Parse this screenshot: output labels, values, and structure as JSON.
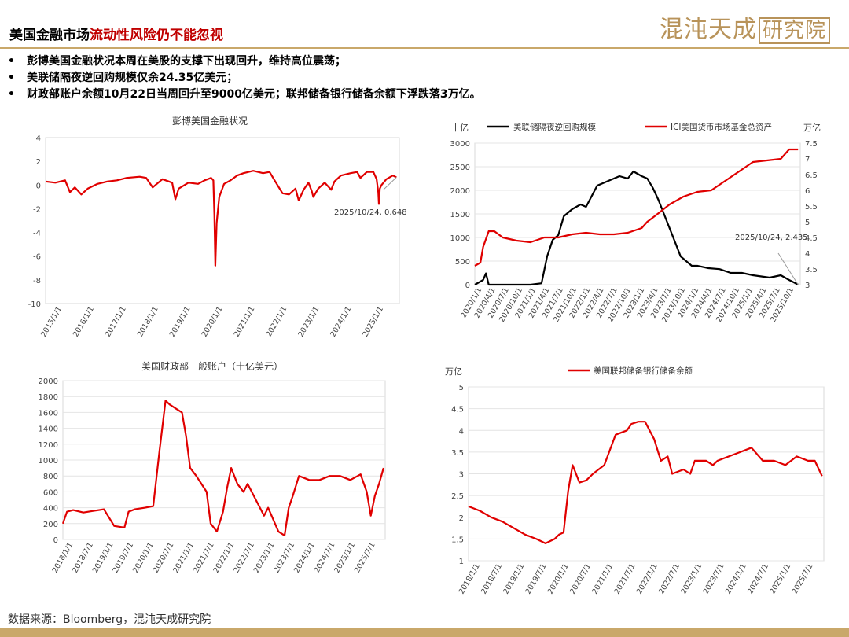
{
  "header": {
    "title_part1": "美国金融市场",
    "title_part2": "流动性风险仍不能忽视",
    "logo_text": "混沌天成",
    "logo_box_text": "研究院"
  },
  "bullets": [
    "彭博美国金融状况本周在美股的支撑下出现回升，维持高位震荡；",
    "美联储隔夜逆回购规模仅余24.35亿美元；",
    "财政部账户余额10月22日当周回升至9000亿美元；联邦储备银行储备余额下浮跌落3万亿。"
  ],
  "bullet_symbol": "•",
  "footer": {
    "source": "数据来源：Bloomberg，混沌天成研究院"
  },
  "colors": {
    "red": "#e00000",
    "black": "#000000",
    "gold": "#c9a86a",
    "highlight": "#c00000"
  },
  "chart_data": [
    {
      "type": "line",
      "title": "彭博美国金融状况",
      "ylim": [
        -10,
        4
      ],
      "yticks": [
        "4",
        "2",
        "0",
        "-2",
        "-4",
        "-6",
        "-8",
        "-10"
      ],
      "xticks": [
        "2015/1/1",
        "2016/1/1",
        "2017/1/1",
        "2018/1/1",
        "2019/1/1",
        "2020/1/1",
        "2021/1/1",
        "2022/1/1",
        "2023/1/1",
        "2024/1/1",
        "2025/1/1"
      ],
      "x_range": [
        2015.0,
        2025.9
      ],
      "annotation": "2025/10/24, 0.648",
      "grid": false,
      "series": [
        {
          "color": "#e00000",
          "x": [
            2015.0,
            2015.3,
            2015.6,
            2015.75,
            2015.9,
            2016.1,
            2016.3,
            2016.6,
            2016.9,
            2017.2,
            2017.5,
            2017.9,
            2018.1,
            2018.3,
            2018.6,
            2018.9,
            2019.0,
            2019.1,
            2019.4,
            2019.7,
            2019.9,
            2020.1,
            2020.17,
            2020.2,
            2020.23,
            2020.27,
            2020.35,
            2020.5,
            2020.7,
            2020.9,
            2021.1,
            2021.4,
            2021.7,
            2021.9,
            2022.1,
            2022.3,
            2022.5,
            2022.7,
            2022.8,
            2022.95,
            2023.1,
            2023.2,
            2023.25,
            2023.4,
            2023.6,
            2023.8,
            2023.9,
            2024.1,
            2024.4,
            2024.6,
            2024.7,
            2024.9,
            2025.1,
            2025.2,
            2025.25,
            2025.27,
            2025.3,
            2025.35,
            2025.5,
            2025.7,
            2025.81
          ],
          "y": [
            0.3,
            0.2,
            0.4,
            -0.6,
            -0.2,
            -0.8,
            -0.3,
            0.1,
            0.3,
            0.4,
            0.6,
            0.7,
            0.6,
            -0.2,
            0.5,
            0.2,
            -1.2,
            -0.3,
            0.2,
            0.1,
            0.4,
            0.6,
            0.4,
            -2.5,
            -6.8,
            -3.2,
            -1.0,
            0.1,
            0.4,
            0.8,
            1.0,
            1.2,
            1.0,
            1.1,
            0.2,
            -0.7,
            -0.8,
            -0.3,
            -1.3,
            -0.4,
            0.2,
            -0.5,
            -1.0,
            -0.3,
            0.2,
            -0.4,
            0.3,
            0.8,
            1.0,
            1.1,
            0.6,
            1.1,
            1.1,
            0.5,
            -0.6,
            -1.6,
            -0.3,
            0.0,
            0.5,
            0.8,
            0.648
          ]
        }
      ]
    },
    {
      "type": "line",
      "ylabel_left": "十亿",
      "ylabel_right": "万亿",
      "ylim_left": [
        0,
        3000
      ],
      "ylim_right": [
        3,
        7.5
      ],
      "yticks_left": [
        "3000",
        "2500",
        "2000",
        "1500",
        "1000",
        "500",
        "0"
      ],
      "yticks_right": [
        "7.5",
        "7",
        "6.5",
        "6",
        "5.5",
        "5",
        "4.5",
        "4",
        "3.5",
        "3"
      ],
      "xticks": [
        "2020/1/1",
        "2020/4/1",
        "2020/7/1",
        "2020/10/1",
        "2021/1/1",
        "2021/4/1",
        "2021/7/1",
        "2021/10/1",
        "2022/1/1",
        "2022/4/1",
        "2022/7/1",
        "2022/10/1",
        "2023/1/1",
        "2023/4/1",
        "2023/7/1",
        "2023/10/1",
        "2024/1/1",
        "2024/4/1",
        "2024/7/1",
        "2024/10/1",
        "2025/1/1",
        "2025/4/1",
        "2025/7/1",
        "2025/10/1"
      ],
      "x_range": [
        2020.0,
        2025.85
      ],
      "annotation": "2025/10/24, 2.435",
      "legend_position": "top",
      "grid": true,
      "series": [
        {
          "name": "美联储隔夜逆回购规模",
          "axis": "left",
          "color": "#000000",
          "x": [
            2020.0,
            2020.15,
            2020.2,
            2020.25,
            2020.35,
            2021.0,
            2021.2,
            2021.3,
            2021.4,
            2021.5,
            2021.6,
            2021.75,
            2021.9,
            2022.0,
            2022.2,
            2022.4,
            2022.6,
            2022.75,
            2022.85,
            2023.0,
            2023.1,
            2023.2,
            2023.3,
            2023.4,
            2023.6,
            2023.7,
            2023.8,
            2023.9,
            2024.0,
            2024.2,
            2024.4,
            2024.6,
            2024.8,
            2025.0,
            2025.3,
            2025.5,
            2025.65,
            2025.75,
            2025.81
          ],
          "y": [
            0,
            100,
            240,
            0,
            0,
            0,
            30,
            600,
            950,
            1050,
            1450,
            1600,
            1700,
            1650,
            2100,
            2200,
            2300,
            2250,
            2400,
            2300,
            2250,
            2050,
            1800,
            1500,
            900,
            600,
            500,
            400,
            400,
            350,
            330,
            250,
            250,
            200,
            150,
            200,
            100,
            40,
            2.435
          ]
        },
        {
          "name": "ICI美国货币市场基金总资产",
          "axis": "right",
          "color": "#e00000",
          "x": [
            2020.0,
            2020.1,
            2020.15,
            2020.25,
            2020.35,
            2020.5,
            2020.75,
            2021.0,
            2021.25,
            2021.5,
            2021.75,
            2022.0,
            2022.25,
            2022.5,
            2022.75,
            2023.0,
            2023.1,
            2023.25,
            2023.5,
            2023.75,
            2024.0,
            2024.25,
            2024.5,
            2024.75,
            2025.0,
            2025.25,
            2025.5,
            2025.65,
            2025.81
          ],
          "y": [
            3.6,
            3.7,
            4.2,
            4.7,
            4.7,
            4.5,
            4.4,
            4.35,
            4.5,
            4.5,
            4.6,
            4.65,
            4.6,
            4.6,
            4.65,
            4.8,
            5.0,
            5.2,
            5.55,
            5.8,
            5.95,
            6.0,
            6.3,
            6.6,
            6.9,
            6.95,
            7.0,
            7.3,
            7.3
          ]
        }
      ]
    },
    {
      "type": "line",
      "title": "美国财政部一般账户（十亿美元）",
      "ylim": [
        0,
        2000
      ],
      "yticks": [
        "2000",
        "1800",
        "1600",
        "1400",
        "1200",
        "1000",
        "800",
        "600",
        "400",
        "200",
        "0"
      ],
      "xticks": [
        "2018/1/1",
        "2018/7/1",
        "2019/1/1",
        "2019/7/1",
        "2020/1/1",
        "2020/7/1",
        "2021/1/1",
        "2021/7/1",
        "2022/1/1",
        "2022/7/1",
        "2023/1/1",
        "2023/7/1",
        "2024/1/1",
        "2024/7/1",
        "2025/1/1",
        "2025/7/1"
      ],
      "x_range": [
        2018.0,
        2025.85
      ],
      "grid": true,
      "series": [
        {
          "color": "#e00000",
          "x": [
            2018.0,
            2018.1,
            2018.25,
            2018.5,
            2018.75,
            2019.0,
            2019.25,
            2019.5,
            2019.6,
            2019.75,
            2020.0,
            2020.2,
            2020.35,
            2020.5,
            2020.6,
            2020.75,
            2020.9,
            2021.0,
            2021.1,
            2021.25,
            2021.5,
            2021.6,
            2021.75,
            2021.9,
            2022.0,
            2022.1,
            2022.25,
            2022.4,
            2022.5,
            2022.75,
            2022.9,
            2023.0,
            2023.25,
            2023.4,
            2023.5,
            2023.6,
            2023.75,
            2024.0,
            2024.25,
            2024.5,
            2024.75,
            2025.0,
            2025.25,
            2025.4,
            2025.5,
            2025.6,
            2025.7,
            2025.81
          ],
          "y": [
            200,
            350,
            370,
            340,
            360,
            380,
            170,
            150,
            350,
            380,
            400,
            420,
            1100,
            1750,
            1700,
            1650,
            1600,
            1300,
            900,
            800,
            600,
            200,
            100,
            350,
            650,
            900,
            700,
            600,
            700,
            450,
            300,
            400,
            100,
            50,
            400,
            550,
            800,
            750,
            750,
            800,
            800,
            750,
            820,
            600,
            300,
            550,
            700,
            900
          ]
        }
      ]
    },
    {
      "type": "line",
      "ylabel_left": "万亿",
      "ylim": [
        1,
        5
      ],
      "yticks": [
        "5",
        "4.5",
        "4",
        "3.5",
        "3",
        "2.5",
        "2",
        "1.5",
        "1"
      ],
      "xticks": [
        "2018/1/1",
        "2018/7/1",
        "2019/1/1",
        "2019/7/1",
        "2020/1/1",
        "2020/7/1",
        "2021/1/1",
        "2021/7/1",
        "2022/1/1",
        "2022/7/1",
        "2023/1/1",
        "2023/7/1",
        "2024/1/1",
        "2024/7/1",
        "2025/1/1",
        "2025/7/1"
      ],
      "x_range": [
        2018.0,
        2025.85
      ],
      "legend_position": "top",
      "grid": true,
      "series": [
        {
          "name": "美国联邦储备银行储备余额",
          "color": "#e00000",
          "x": [
            2018.0,
            2018.25,
            2018.5,
            2018.75,
            2019.0,
            2019.25,
            2019.5,
            2019.7,
            2019.9,
            2020.0,
            2020.1,
            2020.2,
            2020.3,
            2020.45,
            2020.6,
            2020.75,
            2021.0,
            2021.25,
            2021.5,
            2021.6,
            2021.75,
            2021.9,
            2022.0,
            2022.1,
            2022.25,
            2022.4,
            2022.5,
            2022.75,
            2022.9,
            2023.0,
            2023.25,
            2023.4,
            2023.5,
            2023.75,
            2024.0,
            2024.25,
            2024.5,
            2024.75,
            2025.0,
            2025.25,
            2025.5,
            2025.65,
            2025.81
          ],
          "y": [
            2.25,
            2.15,
            2.0,
            1.9,
            1.75,
            1.6,
            1.5,
            1.4,
            1.5,
            1.6,
            1.65,
            2.6,
            3.2,
            2.8,
            2.85,
            3.0,
            3.2,
            3.9,
            4.0,
            4.15,
            4.2,
            4.2,
            4.0,
            3.8,
            3.3,
            3.4,
            3.0,
            3.1,
            3.0,
            3.3,
            3.3,
            3.2,
            3.3,
            3.4,
            3.5,
            3.6,
            3.3,
            3.3,
            3.2,
            3.4,
            3.3,
            3.3,
            2.95
          ]
        }
      ]
    }
  ]
}
